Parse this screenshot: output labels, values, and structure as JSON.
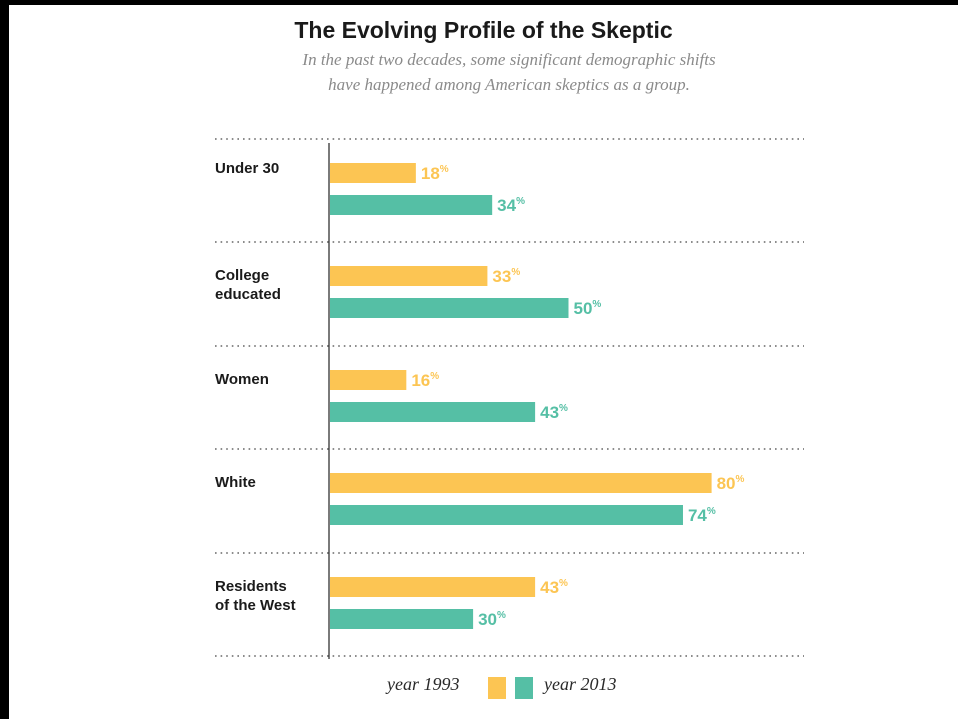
{
  "colors": {
    "y1993": "#fcc553",
    "y2013": "#55bfa5"
  },
  "chart_data": {
    "type": "bar",
    "orientation": "horizontal",
    "title": "The Evolving Profile of the Skeptic",
    "subtitle": [
      "In the past two decades, some significant demographic shifts",
      "have happened among American skeptics as a group."
    ],
    "categories": [
      [
        "Under 30"
      ],
      [
        "College",
        "educated"
      ],
      [
        "Women"
      ],
      [
        "White"
      ],
      [
        "Residents",
        "of the West"
      ]
    ],
    "series": [
      {
        "name": "year 1993",
        "values": [
          18,
          33,
          16,
          80,
          43
        ]
      },
      {
        "name": "year 2013",
        "values": [
          34,
          50,
          43,
          74,
          30
        ]
      }
    ],
    "value_suffix": "%",
    "xlim": [
      0,
      100
    ],
    "legend_position": "bottom"
  }
}
